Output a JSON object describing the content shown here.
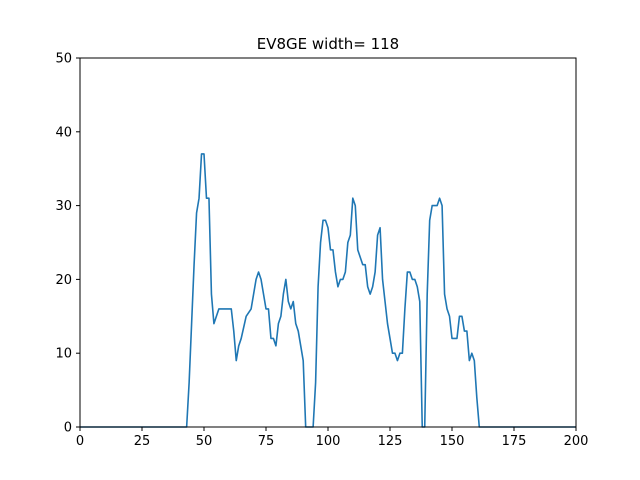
{
  "chart_data": {
    "type": "line",
    "title": "EV8GE width= 118",
    "xlabel": "",
    "ylabel": "",
    "xlim": [
      0,
      200
    ],
    "ylim": [
      0,
      50
    ],
    "xticks": [
      0,
      25,
      50,
      75,
      100,
      125,
      150,
      175,
      200
    ],
    "yticks": [
      0,
      10,
      20,
      30,
      40,
      50
    ],
    "grid": false,
    "colors": {
      "line": "#1f77b4",
      "axes": "#000000",
      "background": "#ffffff"
    },
    "series": [
      {
        "x": [
          0,
          43,
          44,
          45,
          46,
          47,
          48,
          49,
          50,
          51,
          52,
          53,
          54,
          56,
          58,
          60,
          61,
          62,
          63,
          64,
          65,
          67,
          69,
          70,
          71,
          72,
          73,
          74,
          75,
          76,
          77,
          78,
          79,
          80,
          81,
          82,
          83,
          84,
          85,
          86,
          87,
          88,
          89,
          90,
          91,
          93,
          94,
          95,
          96,
          97,
          98,
          99,
          100,
          101,
          102,
          103,
          104,
          105,
          106,
          107,
          108,
          109,
          110,
          111,
          112,
          114,
          115,
          116,
          117,
          118,
          119,
          120,
          121,
          122,
          123,
          124,
          125,
          126,
          127,
          128,
          129,
          130,
          131,
          132,
          133,
          134,
          135,
          136,
          137,
          138,
          139,
          140,
          141,
          142,
          143,
          144,
          145,
          146,
          147,
          148,
          149,
          150,
          151,
          152,
          153,
          154,
          155,
          156,
          157,
          158,
          159,
          160,
          161,
          200
        ],
        "y": [
          0,
          0,
          6,
          14,
          22,
          29,
          31,
          37,
          37,
          31,
          31,
          18,
          14,
          16,
          16,
          16,
          16,
          13,
          9,
          11,
          12,
          15,
          16,
          18,
          20,
          21,
          20,
          18,
          16,
          16,
          12,
          12,
          11,
          14,
          15,
          18,
          20,
          17,
          16,
          17,
          14,
          13,
          11,
          9,
          0,
          0,
          0,
          6,
          19,
          25,
          28,
          28,
          27,
          24,
          24,
          21,
          19,
          20,
          20,
          21,
          25,
          26,
          31,
          30,
          24,
          22,
          22,
          19,
          18,
          19,
          21,
          26,
          27,
          20,
          17,
          14,
          12,
          10,
          10,
          9,
          10,
          10,
          16,
          21,
          21,
          20,
          20,
          19,
          17,
          0,
          0,
          18,
          28,
          30,
          30,
          30,
          31,
          30,
          18,
          16,
          15,
          12,
          12,
          12,
          15,
          15,
          13,
          13,
          9,
          10,
          9,
          4,
          0,
          0
        ]
      }
    ]
  }
}
